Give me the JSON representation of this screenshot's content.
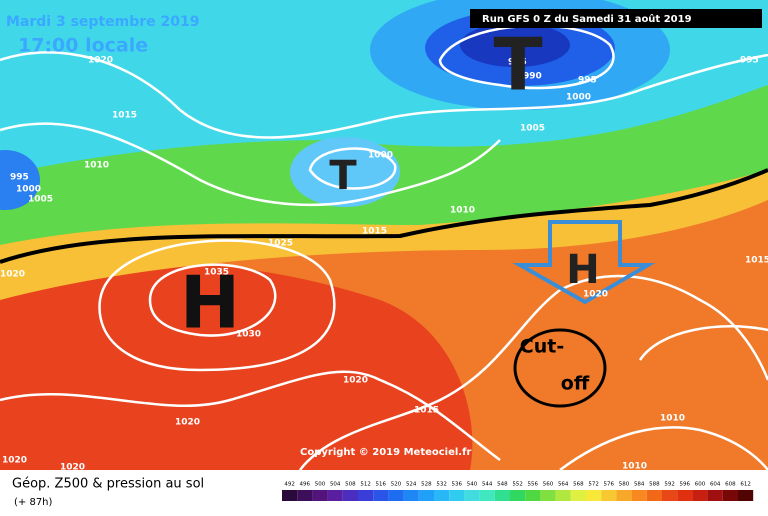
{
  "header": {
    "date": "Mardi 3 septembre 2019",
    "time": "17:00 locale",
    "run": "Run GFS 0 Z du Samedi 31 août 2019"
  },
  "copyright": "Copyright © 2019 Meteociel.fr",
  "footer": {
    "title": "Géop. Z500 & pression au sol",
    "lead": "(+ 87h)"
  },
  "isobar_labels": [
    "1020",
    "1015",
    "1010",
    "995",
    "1000",
    "1005",
    "985",
    "990",
    "995",
    "1000",
    "1005",
    "995",
    "1000",
    "1010",
    "1015",
    "1025",
    "1035",
    "1030",
    "1020",
    "1020",
    "1015",
    "1020",
    "1020",
    "1020",
    "1010",
    "1010",
    "1015",
    "1020"
  ],
  "symbols": [
    "T",
    "T",
    "H",
    "H"
  ],
  "annotation": [
    "Cut-",
    "off"
  ],
  "colorbar": {
    "ticks": [
      492,
      496,
      500,
      504,
      508,
      512,
      516,
      520,
      524,
      528,
      532,
      536,
      540,
      544,
      548,
      552,
      556,
      560,
      564,
      568,
      572,
      576,
      580,
      584,
      588,
      592,
      596,
      600,
      604,
      608,
      612
    ],
    "colors": [
      "#2a0a3a",
      "#3d0f5a",
      "#52137a",
      "#5a1fa0",
      "#4b2dc0",
      "#3a3ed8",
      "#2a55e8",
      "#1e6cf0",
      "#1e86f5",
      "#20a0f8",
      "#28b8f8",
      "#30ccf0",
      "#40dce0",
      "#40e8c0",
      "#30e090",
      "#30d860",
      "#50d840",
      "#80e040",
      "#b0e840",
      "#e0f040",
      "#f8e838",
      "#f8c830",
      "#f8a828",
      "#f88820",
      "#f06818",
      "#e84818",
      "#e03010",
      "#c82010",
      "#a01010",
      "#780808",
      "#500404"
    ]
  }
}
